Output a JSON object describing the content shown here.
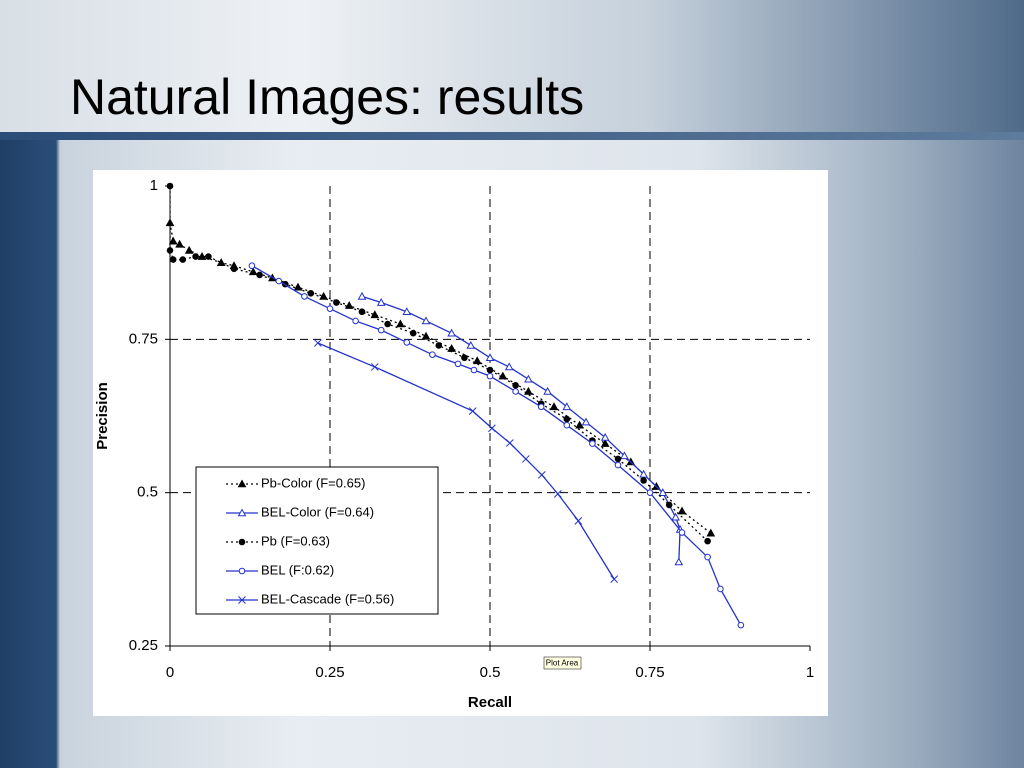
{
  "slide": {
    "title": "Natural Images: results"
  },
  "chart_data": {
    "type": "line",
    "xlabel": "Recall",
    "ylabel": "Precision",
    "xlim": [
      0,
      1
    ],
    "ylim": [
      0.25,
      1
    ],
    "xticks": [
      0,
      0.25,
      0.5,
      0.75,
      1
    ],
    "yticks": [
      0.25,
      0.5,
      0.75,
      1
    ],
    "grid": true,
    "legend": "lower left",
    "annotations": [
      "Plot Area"
    ],
    "series": [
      {
        "name": "Pb-Color (F=0.65)",
        "color": "#000000",
        "marker": "triangle-filled",
        "dash": "dotted",
        "x": [
          0,
          0.005,
          0.015,
          0.03,
          0.05,
          0.08,
          0.1,
          0.13,
          0.16,
          0.2,
          0.24,
          0.28,
          0.32,
          0.36,
          0.4,
          0.44,
          0.48,
          0.52,
          0.56,
          0.6,
          0.64,
          0.68,
          0.72,
          0.76,
          0.8,
          0.845
        ],
        "values": [
          0.94,
          0.91,
          0.905,
          0.895,
          0.885,
          0.875,
          0.87,
          0.86,
          0.85,
          0.835,
          0.82,
          0.805,
          0.79,
          0.775,
          0.755,
          0.735,
          0.715,
          0.69,
          0.665,
          0.64,
          0.61,
          0.58,
          0.55,
          0.51,
          0.47,
          0.434
        ]
      },
      {
        "name": "BEL-Color (F=0.64)",
        "color": "#2233cc",
        "marker": "triangle-open",
        "dash": "solid",
        "x": [
          0.3,
          0.33,
          0.37,
          0.4,
          0.44,
          0.47,
          0.5,
          0.53,
          0.56,
          0.59,
          0.62,
          0.65,
          0.68,
          0.71,
          0.74,
          0.77,
          0.79,
          0.797,
          0.795
        ],
        "values": [
          0.82,
          0.81,
          0.795,
          0.78,
          0.76,
          0.74,
          0.72,
          0.705,
          0.685,
          0.665,
          0.64,
          0.615,
          0.59,
          0.56,
          0.53,
          0.5,
          0.46,
          0.44,
          0.387
        ]
      },
      {
        "name": "Pb (F=0.63)",
        "color": "#000000",
        "marker": "circle-filled",
        "dash": "dotted",
        "x": [
          0,
          0,
          0.005,
          0.02,
          0.04,
          0.06,
          0.1,
          0.14,
          0.18,
          0.22,
          0.26,
          0.3,
          0.34,
          0.38,
          0.42,
          0.46,
          0.5,
          0.54,
          0.58,
          0.62,
          0.66,
          0.7,
          0.74,
          0.78,
          0.84
        ],
        "values": [
          1,
          0.895,
          0.88,
          0.88,
          0.885,
          0.885,
          0.865,
          0.855,
          0.84,
          0.825,
          0.81,
          0.795,
          0.775,
          0.76,
          0.74,
          0.72,
          0.7,
          0.675,
          0.645,
          0.62,
          0.585,
          0.555,
          0.52,
          0.48,
          0.421
        ]
      },
      {
        "name": "BEL (F:0.62)",
        "color": "#2233cc",
        "marker": "circle-open",
        "dash": "solid",
        "x": [
          0.128,
          0.17,
          0.21,
          0.25,
          0.29,
          0.33,
          0.37,
          0.41,
          0.45,
          0.475,
          0.5,
          0.54,
          0.58,
          0.62,
          0.66,
          0.7,
          0.75,
          0.8,
          0.84,
          0.86,
          0.892
        ],
        "values": [
          0.87,
          0.845,
          0.82,
          0.8,
          0.78,
          0.765,
          0.745,
          0.725,
          0.71,
          0.7,
          0.69,
          0.665,
          0.64,
          0.61,
          0.58,
          0.545,
          0.5,
          0.435,
          0.395,
          0.343,
          0.284
        ]
      },
      {
        "name": "BEL-Cascade (F=0.56)",
        "color": "#2233cc",
        "marker": "x",
        "dash": "solid",
        "x": [
          0.231,
          0.32,
          0.473,
          0.503,
          0.531,
          0.556,
          0.581,
          0.606,
          0.638,
          0.694
        ],
        "values": [
          0.744,
          0.705,
          0.633,
          0.605,
          0.581,
          0.555,
          0.529,
          0.498,
          0.454,
          0.359
        ]
      }
    ]
  }
}
